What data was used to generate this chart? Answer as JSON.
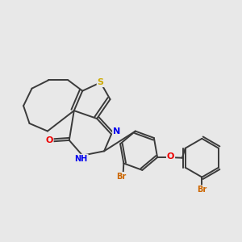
{
  "background_color": "#e8e8e8",
  "bond_color": "#3a3a3a",
  "bond_width": 1.4,
  "figsize": [
    3.0,
    3.0
  ],
  "dpi": 100,
  "S_color": "#ccaa00",
  "N_color": "#0000ee",
  "O_color": "#ee0000",
  "Br_color": "#cc6600",
  "font_size": 7.0,
  "font_size_lg": 8.0,
  "xlim": [
    0.0,
    1.0
  ],
  "ylim": [
    0.0,
    1.0
  ]
}
